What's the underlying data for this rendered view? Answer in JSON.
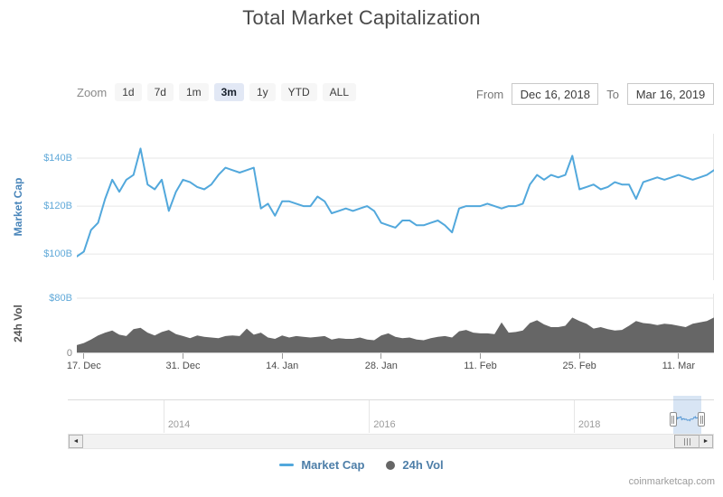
{
  "title": "Total Market Capitalization",
  "credit": "coinmarketcap.com",
  "toolbar": {
    "zoom_label": "Zoom",
    "zoom_options": [
      "1d",
      "7d",
      "1m",
      "3m",
      "1y",
      "YTD",
      "ALL"
    ],
    "zoom_selected": "3m",
    "from_label": "From",
    "from_value": "Dec 16, 2018",
    "to_label": "To",
    "to_value": "Mar 16, 2019"
  },
  "legend": [
    {
      "label": "Market Cap",
      "marker": "line",
      "color": "#52a8dc"
    },
    {
      "label": "24h Vol",
      "marker": "circle",
      "color": "#666666"
    }
  ],
  "colors": {
    "grid": "#e6e6e6",
    "axis_baseline": "#cccccc",
    "navigator_mini_line": "#5b9bd5"
  },
  "chart_data": {
    "type": "line",
    "title": "Total Market Capitalization",
    "x_range": {
      "start": "Dec 16, 2018",
      "end": "Mar 16, 2019",
      "interval": "daily",
      "points": 91
    },
    "xticks": [
      {
        "label": "17. Dec",
        "day": 1
      },
      {
        "label": "31. Dec",
        "day": 15
      },
      {
        "label": "14. Jan",
        "day": 29
      },
      {
        "label": "28. Jan",
        "day": 43
      },
      {
        "label": "11. Feb",
        "day": 57
      },
      {
        "label": "25. Feb",
        "day": 71
      },
      {
        "label": "11. Mar",
        "day": 85
      }
    ],
    "panes": [
      {
        "name": "Market Cap",
        "type": "line",
        "color": "#52a8dc",
        "ylim": [
          89.1,
          150.2
        ],
        "unit": "$B",
        "yticks": [
          {
            "label": "$140B",
            "value": 140,
            "color": "#60a9d9"
          },
          {
            "label": "$120B",
            "value": 120,
            "color": "#60a9d9"
          },
          {
            "label": "$100B",
            "value": 100,
            "color": "#60a9d9"
          }
        ]
      },
      {
        "name": "24h Vol",
        "type": "area",
        "color": "#666666",
        "ylim": [
          0,
          86.6
        ],
        "unit": "$B",
        "yticks": [
          {
            "label": "$80B",
            "value": 80,
            "color": "#60a9d9"
          },
          {
            "label": "0",
            "value": 0,
            "color": "#888888"
          }
        ]
      }
    ],
    "series": [
      {
        "name": "Market Cap",
        "unit": "$B",
        "values": [
          99,
          101,
          110,
          113,
          123,
          131,
          126,
          131,
          133,
          144,
          129,
          127,
          131,
          118,
          126,
          131,
          130,
          128,
          127,
          129,
          133,
          136,
          135,
          134,
          135,
          136,
          119,
          121,
          116,
          122,
          122,
          121,
          120,
          120,
          124,
          122,
          117,
          118,
          119,
          118,
          119,
          120,
          118,
          113,
          112,
          111,
          114,
          114,
          112,
          112,
          113,
          114,
          112,
          109,
          119,
          120,
          120,
          120,
          121,
          120,
          119,
          120,
          120,
          121,
          129,
          133,
          131,
          133,
          132,
          133,
          141,
          127,
          128,
          129,
          127,
          128,
          130,
          129,
          129,
          123,
          130,
          131,
          132,
          131,
          132,
          133,
          132,
          131,
          132,
          133,
          135
        ]
      },
      {
        "name": "24h Vol",
        "unit": "$B",
        "values": [
          12,
          15,
          20,
          26,
          30,
          33,
          27,
          25,
          35,
          37,
          30,
          26,
          31,
          34,
          28,
          25,
          22,
          26,
          24,
          23,
          22,
          25,
          26,
          25,
          36,
          27,
          30,
          23,
          21,
          26,
          23,
          25,
          24,
          23,
          24,
          25,
          20,
          22,
          21,
          21,
          23,
          20,
          19,
          26,
          29,
          24,
          22,
          23,
          20,
          19,
          22,
          24,
          25,
          23,
          32,
          34,
          30,
          29,
          29,
          28,
          45,
          30,
          31,
          33,
          44,
          48,
          42,
          38,
          38,
          40,
          52,
          47,
          43,
          36,
          38,
          35,
          33,
          34,
          40,
          47,
          44,
          43,
          41,
          43,
          42,
          40,
          38,
          43,
          45,
          47,
          52
        ]
      }
    ],
    "navigator": {
      "years": [
        {
          "label": "2014",
          "pos": 0.148
        },
        {
          "label": "2016",
          "pos": 0.466
        },
        {
          "label": "2018",
          "pos": 0.783
        }
      ],
      "selection": [
        0.937,
        0.981
      ]
    }
  }
}
